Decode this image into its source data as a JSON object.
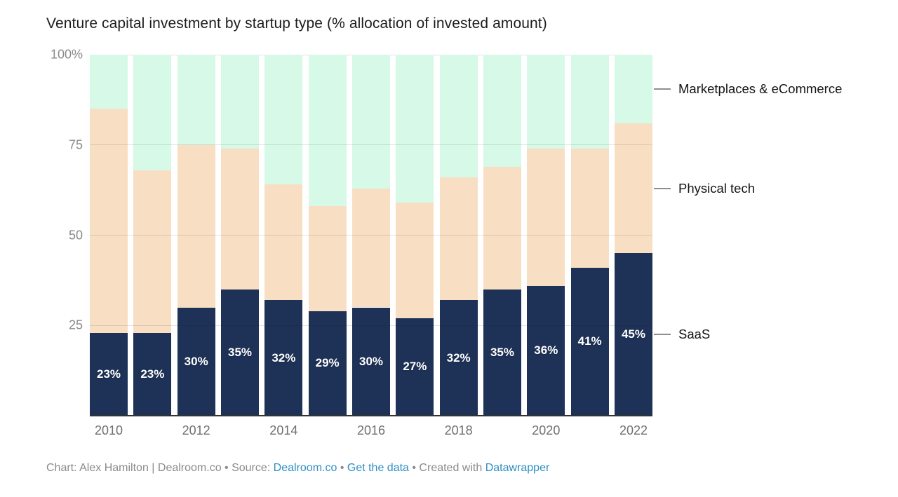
{
  "title": "Venture capital investment by startup type (% allocation of invested amount)",
  "chart_data": {
    "type": "bar",
    "stacked": true,
    "stack_unit": "%",
    "title": "Venture capital investment by startup type (% allocation of invested amount)",
    "categories": [
      "2010",
      "2011",
      "2012",
      "2013",
      "2014",
      "2015",
      "2016",
      "2017",
      "2018",
      "2019",
      "2020",
      "2021",
      "2022"
    ],
    "x_tick_labels_shown": [
      "2010",
      "2012",
      "2014",
      "2016",
      "2018",
      "2020",
      "2022"
    ],
    "series": [
      {
        "name": "SaaS",
        "color": "#1e3157",
        "values": [
          23,
          23,
          30,
          35,
          32,
          29,
          30,
          27,
          32,
          35,
          36,
          41,
          45
        ],
        "data_labels": [
          "23%",
          "23%",
          "30%",
          "35%",
          "32%",
          "29%",
          "30%",
          "27%",
          "32%",
          "35%",
          "36%",
          "41%",
          "45%"
        ]
      },
      {
        "name": "Physical tech",
        "color": "#f8dfc3",
        "values": [
          62,
          45,
          45,
          39,
          32,
          29,
          33,
          32,
          34,
          34,
          38,
          33,
          36
        ],
        "data_labels": null
      },
      {
        "name": "Marketplaces & eCommerce",
        "color": "#d7f9e8",
        "values": [
          15,
          32,
          25,
          26,
          36,
          42,
          37,
          41,
          34,
          31,
          26,
          26,
          19
        ],
        "data_labels": null
      }
    ],
    "ylim": [
      0,
      100
    ],
    "yticks": [
      {
        "value": 100,
        "label": "100%"
      },
      {
        "value": 75,
        "label": "75"
      },
      {
        "value": 50,
        "label": "50"
      },
      {
        "value": 25,
        "label": "25"
      }
    ],
    "grid": true,
    "legend_position": "right-annotated",
    "legend_entries": [
      "Marketplaces & eCommerce",
      "Physical tech",
      "SaaS"
    ]
  },
  "footer": {
    "segments": [
      {
        "text": "Chart: Alex Hamilton | Dealroom.co • Source: ",
        "link": false
      },
      {
        "text": "Dealroom.co",
        "link": true
      },
      {
        "text": " • ",
        "link": false
      },
      {
        "text": "Get the data",
        "link": true
      },
      {
        "text": " • Created with ",
        "link": false
      },
      {
        "text": "Datawrapper",
        "link": true
      }
    ]
  },
  "colors": {
    "saas": "#1e3157",
    "physical_tech": "#f8dfc3",
    "marketplaces": "#d7f9e8",
    "baseline": "#333333",
    "axis_text": "#8a8a8a",
    "link_blue": "#2f8fc6"
  }
}
